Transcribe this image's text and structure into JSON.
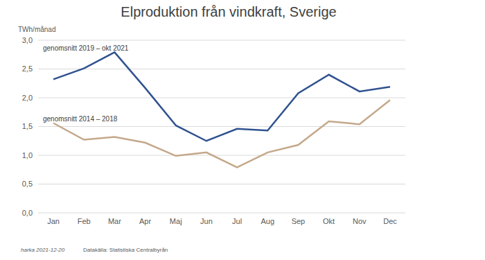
{
  "chart_data": {
    "type": "line",
    "title": "Elproduktion från vindkraft, Sverige",
    "y_label": "TWh/månad",
    "footer": [
      "harka 2021-12-20",
      "Datakälla: Statistiska Centralbyrån"
    ],
    "categories": [
      "Jan",
      "Feb",
      "Mar",
      "Apr",
      "Maj",
      "Jun",
      "Jul",
      "Aug",
      "Sep",
      "Okt",
      "Nov",
      "Dec"
    ],
    "series": [
      {
        "name": "genomsnitt 2019 – okt 2021",
        "color": "#2f528f",
        "values": [
          2.32,
          2.51,
          2.79,
          2.17,
          1.52,
          1.25,
          1.46,
          1.43,
          2.08,
          2.4,
          2.11,
          2.19
        ]
      },
      {
        "name": "genomsnitt 2014 – 2018",
        "color": "#c4a88a",
        "values": [
          1.56,
          1.27,
          1.32,
          1.22,
          0.99,
          1.05,
          0.79,
          1.05,
          1.18,
          1.59,
          1.54,
          1.96
        ]
      }
    ],
    "ylim": [
      0,
      3
    ],
    "yticks": [
      {
        "value": 0,
        "label": "0,0"
      },
      {
        "value": 0.5,
        "label": "0,5"
      },
      {
        "value": 1,
        "label": "1,0"
      },
      {
        "value": 1.5,
        "label": "1,5"
      },
      {
        "value": 2,
        "label": "2,0"
      },
      {
        "value": 2.5,
        "label": "2,5"
      },
      {
        "value": 3,
        "label": "3,0"
      }
    ],
    "grid": true,
    "marker": "none"
  }
}
